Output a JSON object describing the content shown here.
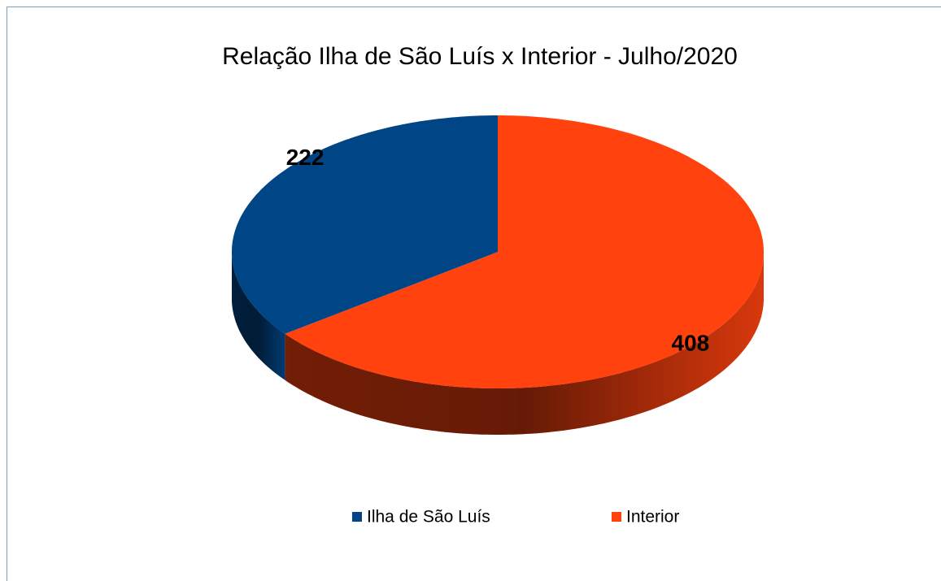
{
  "chart_data": {
    "type": "pie",
    "title": "Relação Ilha de São Luís x Interior - Julho/2020",
    "categories": [
      "Ilha de São Luís",
      "Interior"
    ],
    "values": [
      222,
      408
    ],
    "colors": [
      "#004586",
      "#ff420e"
    ],
    "legend": "bottom"
  }
}
